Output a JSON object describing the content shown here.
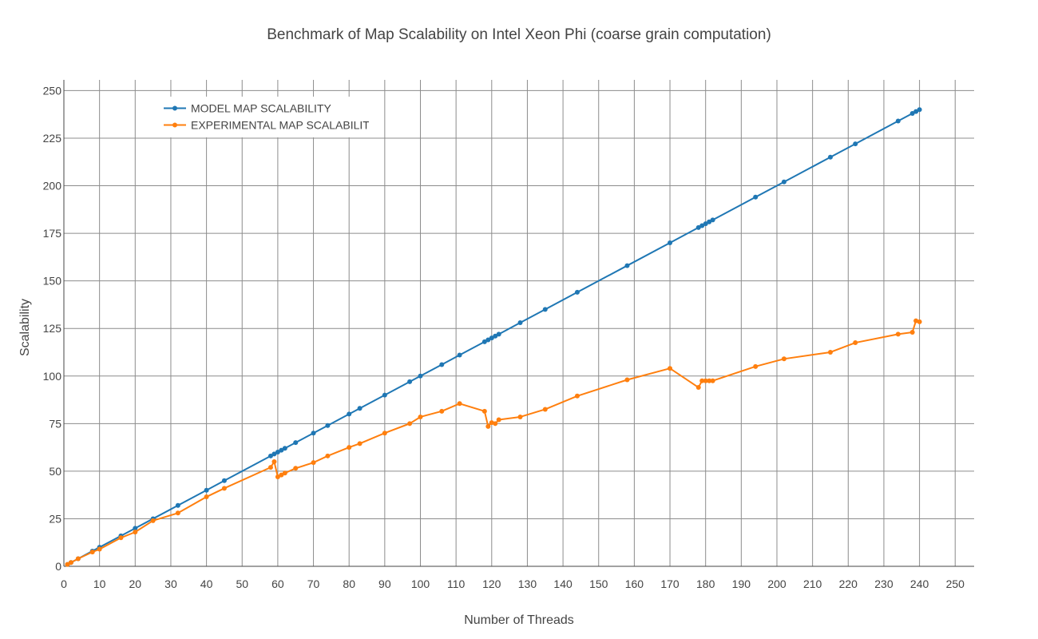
{
  "chart_data": {
    "type": "line",
    "title": "Benchmark of Map Scalability on Intel Xeon Phi (coarse grain computation)",
    "xlabel": "Number of Threads",
    "ylabel": "Scalability",
    "xlim": [
      0,
      250
    ],
    "ylim": [
      0,
      250
    ],
    "xticks": [
      0,
      10,
      20,
      30,
      40,
      50,
      60,
      70,
      80,
      90,
      100,
      110,
      120,
      130,
      140,
      150,
      160,
      170,
      180,
      190,
      200,
      210,
      220,
      230,
      240,
      250
    ],
    "yticks": [
      0,
      25,
      50,
      75,
      100,
      125,
      150,
      175,
      200,
      225,
      250
    ],
    "grid": true,
    "legend_position": "top-left",
    "series": [
      {
        "name": "MODEL MAP SCALABILITY",
        "color": "#1f77b4",
        "x": [
          1,
          2,
          4,
          8,
          10,
          16,
          20,
          25,
          32,
          40,
          45,
          58,
          59,
          60,
          61,
          62,
          65,
          70,
          74,
          80,
          83,
          90,
          97,
          100,
          106,
          111,
          118,
          119,
          120,
          121,
          122,
          128,
          135,
          144,
          158,
          170,
          178,
          179,
          180,
          181,
          182,
          194,
          202,
          215,
          222,
          234,
          238,
          239,
          240
        ],
        "y": [
          1,
          2,
          4,
          8,
          10,
          16,
          20,
          25,
          32,
          40,
          45,
          58,
          59,
          60,
          61,
          62,
          65,
          70,
          74,
          80,
          83,
          90,
          97,
          100,
          106,
          111,
          118,
          119,
          120,
          121,
          122,
          128,
          135,
          144,
          158,
          170,
          178,
          179,
          180,
          181,
          182,
          194,
          202,
          215,
          222,
          234,
          238,
          239,
          240
        ]
      },
      {
        "name": "EXPERIMENTAL MAP SCALABILITY",
        "color": "#ff7f0e",
        "x": [
          1,
          2,
          4,
          8,
          10,
          16,
          20,
          25,
          32,
          40,
          45,
          58,
          59,
          60,
          61,
          62,
          65,
          70,
          74,
          80,
          83,
          90,
          97,
          100,
          106,
          111,
          118,
          119,
          120,
          121,
          122,
          128,
          135,
          144,
          158,
          170,
          178,
          179,
          180,
          181,
          182,
          194,
          202,
          215,
          222,
          234,
          238,
          239,
          240
        ],
        "y": [
          1,
          2,
          4,
          7.5,
          9,
          15,
          18,
          24,
          28,
          36.5,
          41,
          52,
          55,
          47,
          48,
          49,
          51.5,
          54.5,
          58,
          62.5,
          64.5,
          70,
          75,
          78.5,
          81.5,
          85.5,
          81.5,
          73.5,
          75.5,
          75,
          77,
          78.5,
          82.5,
          89.5,
          98,
          104,
          94,
          97.5,
          97.5,
          97.5,
          97.5,
          105,
          109,
          112.5,
          117.5,
          122,
          123,
          129,
          128.5
        ]
      }
    ]
  }
}
